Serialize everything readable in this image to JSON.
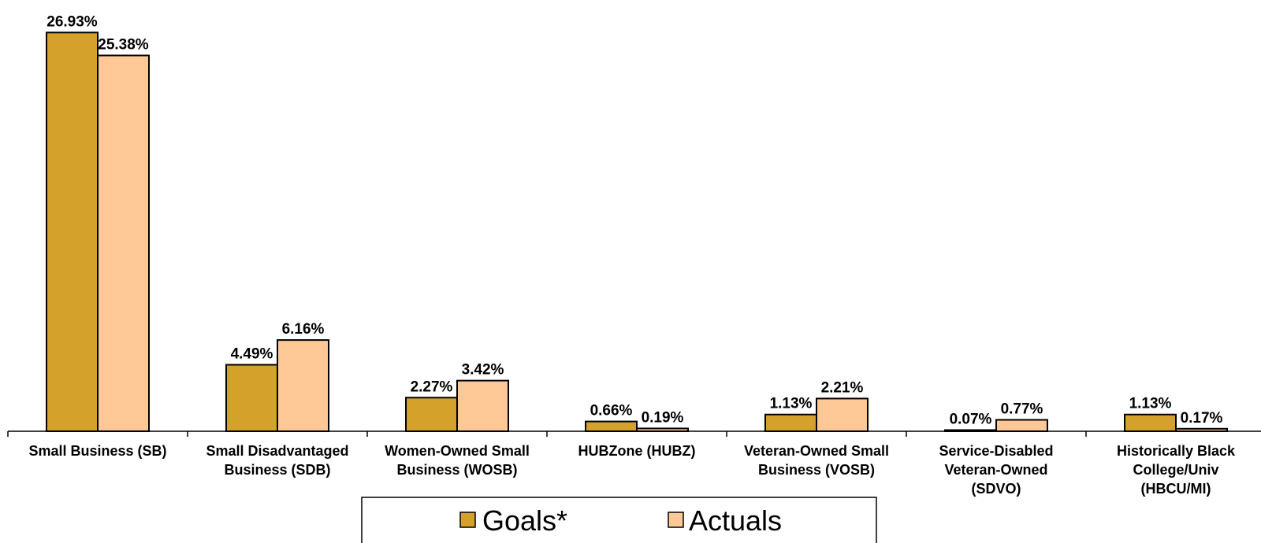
{
  "chart_data": {
    "type": "bar",
    "categories": [
      "Small Business (SB)",
      "Small Disadvantaged Business (SDB)",
      "Women-Owned Small Business (WOSB)",
      "HUBZone (HUBZ)",
      "Veteran-Owned Small Business (VOSB)",
      "Service-Disabled Veteran-Owned (SDVO)",
      "Historically Black College/Univ (HBCU/MI)"
    ],
    "category_lines": [
      [
        "Small Business (SB)"
      ],
      [
        "Small Disadvantaged",
        "Business (SDB)"
      ],
      [
        "Women-Owned Small",
        "Business (WOSB)"
      ],
      [
        "HUBZone (HUBZ)"
      ],
      [
        "Veteran-Owned Small",
        "Business (VOSB)"
      ],
      [
        "Service-Disabled",
        "Veteran-Owned",
        "(SDVO)"
      ],
      [
        "Historically Black",
        "College/Univ",
        "(HBCU/MI)"
      ]
    ],
    "series": [
      {
        "name": "Goals*",
        "color": "#D4A22B",
        "values": [
          26.93,
          4.49,
          2.27,
          0.66,
          1.13,
          0.07,
          1.13
        ],
        "labels": [
          "26.93%",
          "4.49%",
          "2.27%",
          "0.66%",
          "1.13%",
          "0.07%",
          "1.13%"
        ]
      },
      {
        "name": "Actuals",
        "color": "#FFC896",
        "values": [
          25.38,
          6.16,
          3.42,
          0.19,
          2.21,
          0.77,
          0.17
        ],
        "labels": [
          "25.38%",
          "6.16%",
          "3.42%",
          "0.19%",
          "2.21%",
          "0.77%",
          "0.17%"
        ]
      }
    ],
    "ylim": [
      0,
      27
    ],
    "grid": false,
    "legend_position": "bottom"
  }
}
